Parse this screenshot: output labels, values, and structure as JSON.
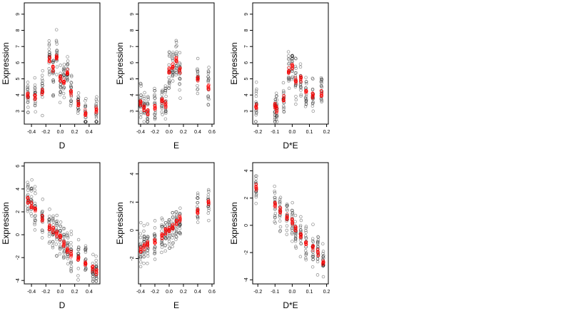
{
  "colors": {
    "observed": "#000000",
    "fitted": "#ff0000"
  },
  "chart_data": [
    {
      "type": "scatter",
      "xlabel": "D",
      "ylabel": "Expression",
      "xlim": [
        -0.5,
        0.55
      ],
      "ylim": [
        2.2,
        9.7
      ],
      "xticks": [
        -0.4,
        -0.2,
        0.0,
        0.2,
        0.4
      ],
      "xtick_labels": [
        "-0.4",
        "-0.2",
        "0.0",
        "0.2",
        "0.4"
      ],
      "yticks": [
        3,
        4,
        5,
        6,
        7,
        8,
        9
      ],
      "ytick_labels": [
        "3",
        "4",
        "5",
        "6",
        "7",
        "8",
        "9"
      ],
      "groups": [
        {
          "x": -0.45,
          "y": 4.0
        },
        {
          "x": -0.35,
          "y": 3.9
        },
        {
          "x": -0.25,
          "y": 4.2
        },
        {
          "x": -0.15,
          "y": 6.2
        },
        {
          "x": -0.1,
          "y": 5.6
        },
        {
          "x": -0.05,
          "y": 6.4
        },
        {
          "x": 0.0,
          "y": 5.0
        },
        {
          "x": 0.05,
          "y": 4.9
        },
        {
          "x": 0.1,
          "y": 5.4
        },
        {
          "x": 0.15,
          "y": 4.1
        },
        {
          "x": 0.25,
          "y": 3.5
        },
        {
          "x": 0.35,
          "y": 2.9
        },
        {
          "x": 0.5,
          "y": 3.1
        }
      ]
    },
    {
      "type": "scatter",
      "xlabel": "E",
      "ylabel": "Expression",
      "xlim": [
        -0.43,
        0.63
      ],
      "ylim": [
        2.2,
        9.7
      ],
      "xticks": [
        -0.4,
        -0.2,
        0.0,
        0.2,
        0.4,
        0.6
      ],
      "xtick_labels": [
        "-0.4",
        "-0.2",
        "0.0",
        "0.2",
        "0.4",
        "0.6"
      ],
      "yticks": [
        3,
        4,
        5,
        6,
        7,
        8,
        9
      ],
      "ytick_labels": [
        "3",
        "4",
        "5",
        "6",
        "7",
        "8",
        "9"
      ],
      "groups": [
        {
          "x": -0.4,
          "y": 3.5
        },
        {
          "x": -0.35,
          "y": 3.2
        },
        {
          "x": -0.3,
          "y": 2.9
        },
        {
          "x": -0.2,
          "y": 3.2
        },
        {
          "x": -0.1,
          "y": 3.6
        },
        {
          "x": -0.05,
          "y": 3.4
        },
        {
          "x": 0.0,
          "y": 5.5
        },
        {
          "x": 0.05,
          "y": 5.8
        },
        {
          "x": 0.1,
          "y": 6.2
        },
        {
          "x": 0.15,
          "y": 5.5
        },
        {
          "x": 0.4,
          "y": 5.0
        },
        {
          "x": 0.55,
          "y": 4.5
        }
      ]
    },
    {
      "type": "scatter",
      "xlabel": "D*E",
      "ylabel": "Expression",
      "xlim": [
        -0.23,
        0.21
      ],
      "ylim": [
        2.2,
        9.7
      ],
      "xticks": [
        -0.2,
        -0.1,
        0.0,
        0.1,
        0.2
      ],
      "xtick_labels": [
        "-0.2",
        "-0.1",
        "0.0",
        "0.1",
        "0.2"
      ],
      "yticks": [
        3,
        4,
        5,
        6,
        7,
        8,
        9
      ],
      "ytick_labels": [
        "3",
        "4",
        "5",
        "6",
        "7",
        "8",
        "9"
      ],
      "groups": [
        {
          "x": -0.21,
          "y": 3.3
        },
        {
          "x": -0.1,
          "y": 3.3
        },
        {
          "x": -0.09,
          "y": 3.1
        },
        {
          "x": -0.05,
          "y": 3.8
        },
        {
          "x": -0.02,
          "y": 5.5
        },
        {
          "x": 0.0,
          "y": 5.8
        },
        {
          "x": 0.02,
          "y": 4.9
        },
        {
          "x": 0.05,
          "y": 5.0
        },
        {
          "x": 0.08,
          "y": 4.2
        },
        {
          "x": 0.12,
          "y": 4.0
        },
        {
          "x": 0.17,
          "y": 4.1
        }
      ]
    },
    {
      "type": "scatter",
      "xlabel": "D",
      "ylabel": "Expression",
      "xlim": [
        -0.5,
        0.55
      ],
      "ylim": [
        -4.3,
        6.3
      ],
      "xticks": [
        -0.4,
        -0.2,
        0.0,
        0.2,
        0.4
      ],
      "xtick_labels": [
        "-0.4",
        "-0.2",
        "0.0",
        "0.2",
        "0.4"
      ],
      "yticks": [
        -4,
        -2,
        0,
        2,
        4,
        6
      ],
      "ytick_labels": [
        "-4",
        "-2",
        "0",
        "2",
        "4",
        "6"
      ],
      "groups": [
        {
          "x": -0.45,
          "y": 3.0
        },
        {
          "x": -0.4,
          "y": 2.6
        },
        {
          "x": -0.35,
          "y": 2.2
        },
        {
          "x": -0.25,
          "y": 1.4
        },
        {
          "x": -0.15,
          "y": 0.6
        },
        {
          "x": -0.1,
          "y": 0.4
        },
        {
          "x": -0.05,
          "y": 0.1
        },
        {
          "x": 0.0,
          "y": -0.2
        },
        {
          "x": 0.05,
          "y": -0.8
        },
        {
          "x": 0.1,
          "y": -1.3
        },
        {
          "x": 0.15,
          "y": -1.7
        },
        {
          "x": 0.25,
          "y": -2.0
        },
        {
          "x": 0.35,
          "y": -2.6
        },
        {
          "x": 0.45,
          "y": -3.0
        },
        {
          "x": 0.5,
          "y": -3.3
        }
      ]
    },
    {
      "type": "scatter",
      "xlabel": "E",
      "ylabel": "Expression",
      "xlim": [
        -0.43,
        0.63
      ],
      "ylim": [
        -3.8,
        4.8
      ],
      "xticks": [
        -0.4,
        -0.2,
        0.0,
        0.2,
        0.4,
        0.6
      ],
      "xtick_labels": [
        "-0.4",
        "-0.2",
        "0.0",
        "0.2",
        "0.4",
        "0.6"
      ],
      "yticks": [
        -2,
        0,
        2,
        4
      ],
      "ytick_labels": [
        "-2",
        "0",
        "2",
        "4"
      ],
      "groups": [
        {
          "x": -0.4,
          "y": -1.4
        },
        {
          "x": -0.35,
          "y": -1.2
        },
        {
          "x": -0.3,
          "y": -1.0
        },
        {
          "x": -0.2,
          "y": -0.8
        },
        {
          "x": -0.1,
          "y": -0.4
        },
        {
          "x": -0.05,
          "y": -0.1
        },
        {
          "x": 0.0,
          "y": 0.1
        },
        {
          "x": 0.05,
          "y": 0.2
        },
        {
          "x": 0.1,
          "y": 0.6
        },
        {
          "x": 0.15,
          "y": 0.8
        },
        {
          "x": 0.4,
          "y": 1.3
        },
        {
          "x": 0.55,
          "y": 2.0
        }
      ]
    },
    {
      "type": "scatter",
      "xlabel": "D*E",
      "ylabel": "Expression",
      "xlim": [
        -0.23,
        0.21
      ],
      "ylim": [
        -4.3,
        4.6
      ],
      "xticks": [
        -0.2,
        -0.1,
        0.0,
        0.1,
        0.2
      ],
      "xtick_labels": [
        "-0.2",
        "-0.1",
        "0.0",
        "0.1",
        "0.2"
      ],
      "yticks": [
        -4,
        -2,
        0,
        2,
        4
      ],
      "ytick_labels": [
        "-4",
        "-2",
        "0",
        "2",
        "4"
      ],
      "groups": [
        {
          "x": -0.21,
          "y": 2.8
        },
        {
          "x": -0.1,
          "y": 1.5
        },
        {
          "x": -0.07,
          "y": 1.1
        },
        {
          "x": -0.03,
          "y": 0.6
        },
        {
          "x": 0.0,
          "y": 0.3
        },
        {
          "x": 0.02,
          "y": -0.3
        },
        {
          "x": 0.05,
          "y": -0.8
        },
        {
          "x": 0.08,
          "y": -1.3
        },
        {
          "x": 0.12,
          "y": -1.7
        },
        {
          "x": 0.15,
          "y": -2.0
        },
        {
          "x": 0.18,
          "y": -2.7
        }
      ]
    }
  ]
}
